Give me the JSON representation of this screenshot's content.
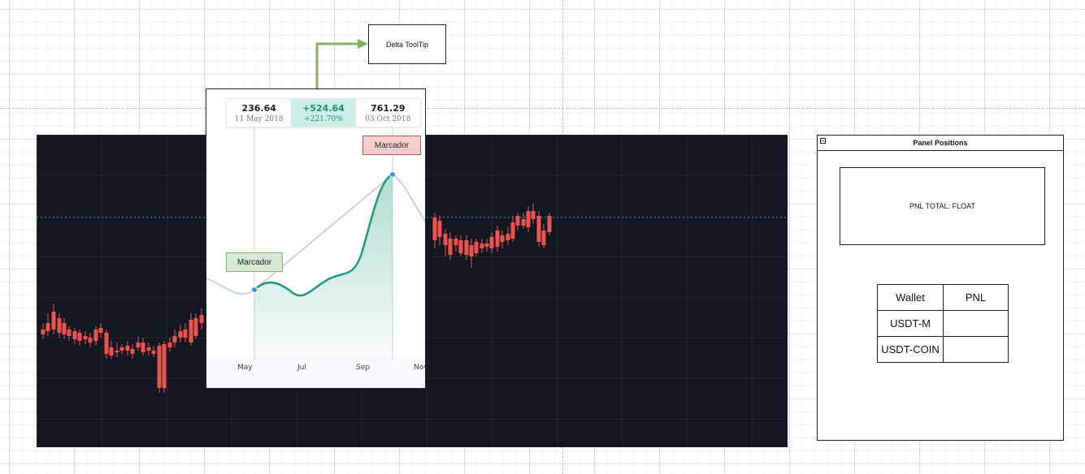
{
  "delta_tooltip_label": "Delta ToolTip",
  "tooltip": {
    "start": {
      "value": "236.64",
      "date": "11 May 2018"
    },
    "delta": {
      "value": "+524.64",
      "percent": "+221.70%"
    },
    "end": {
      "value": "761.29",
      "date": "03 Oct 2018"
    },
    "x_axis_labels": [
      "May",
      "Jul",
      "Sep",
      "Nov"
    ],
    "marker_green_label": "Marcador",
    "marker_red_label": "Marcador"
  },
  "panel": {
    "title": "Panel Positions",
    "collapse_symbol": "−",
    "pnl_total_label": "PNL TOTAL: FLOAT",
    "table": {
      "headers": [
        "Wallet",
        "PNL"
      ],
      "rows": [
        [
          "USDT-M",
          ""
        ],
        [
          "USDT-COIN",
          ""
        ]
      ]
    }
  },
  "colors": {
    "chart_bg": "#131722",
    "candle_up": "#26a69a",
    "candle_down": "#ef5350",
    "line": "#1f9a7b",
    "green_callout": "#d5e8d4",
    "red_callout": "#f8cecc",
    "connector": "#82b366"
  }
}
